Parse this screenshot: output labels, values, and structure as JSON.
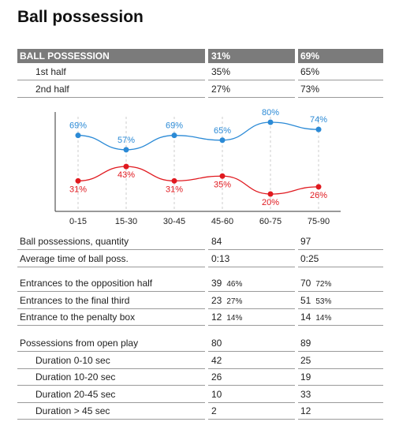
{
  "title": "Ball possession",
  "summary": {
    "header": [
      "BALL POSSESSION",
      "31%",
      "69%"
    ],
    "rows": [
      [
        "1st half",
        "35%",
        "65%"
      ],
      [
        "2nd half",
        "27%",
        "73%"
      ]
    ]
  },
  "chart_data": {
    "type": "line",
    "categories": [
      "0-15",
      "15-30",
      "30-45",
      "45-60",
      "60-75",
      "75-90"
    ],
    "series": [
      {
        "color": "#2b8ad6",
        "values": [
          69,
          57,
          69,
          65,
          80,
          74
        ],
        "value_labels": [
          "69%",
          "57%",
          "69%",
          "65%",
          "80%",
          "74%"
        ]
      },
      {
        "color": "#e0191f",
        "values": [
          31,
          43,
          31,
          35,
          20,
          26
        ],
        "value_labels": [
          "31%",
          "43%",
          "31%",
          "35%",
          "20%",
          "26%"
        ]
      }
    ]
  },
  "stats": {
    "groups": [
      {
        "rows": [
          {
            "label": "Ball possessions, quantity",
            "home": "84",
            "away": "97"
          },
          {
            "label": "Average time of ball poss.",
            "home": "0:13",
            "away": "0:25"
          }
        ]
      },
      {
        "rows": [
          {
            "label": "Entrances to the opposition half",
            "home": "39",
            "home_share": "46%",
            "away": "70",
            "away_share": "72%"
          },
          {
            "label": "Entrances to the final third",
            "home": "23",
            "home_share": "27%",
            "away": "51",
            "away_share": "53%"
          },
          {
            "label": "Entrance to the penalty box",
            "home": "12",
            "home_share": "14%",
            "away": "14",
            "away_share": "14%"
          }
        ]
      },
      {
        "rows": [
          {
            "label": "Possessions from open play",
            "home": "80",
            "away": "89"
          },
          {
            "label": "Duration 0-10 sec",
            "home": "42",
            "away": "25",
            "indent": true
          },
          {
            "label": "Duration 10-20 sec",
            "home": "26",
            "away": "19",
            "indent": true
          },
          {
            "label": "Duration 20-45 sec",
            "home": "10",
            "away": "33",
            "indent": true
          },
          {
            "label": "Duration > 45 sec",
            "home": "2",
            "away": "12",
            "indent": true
          }
        ]
      }
    ]
  }
}
